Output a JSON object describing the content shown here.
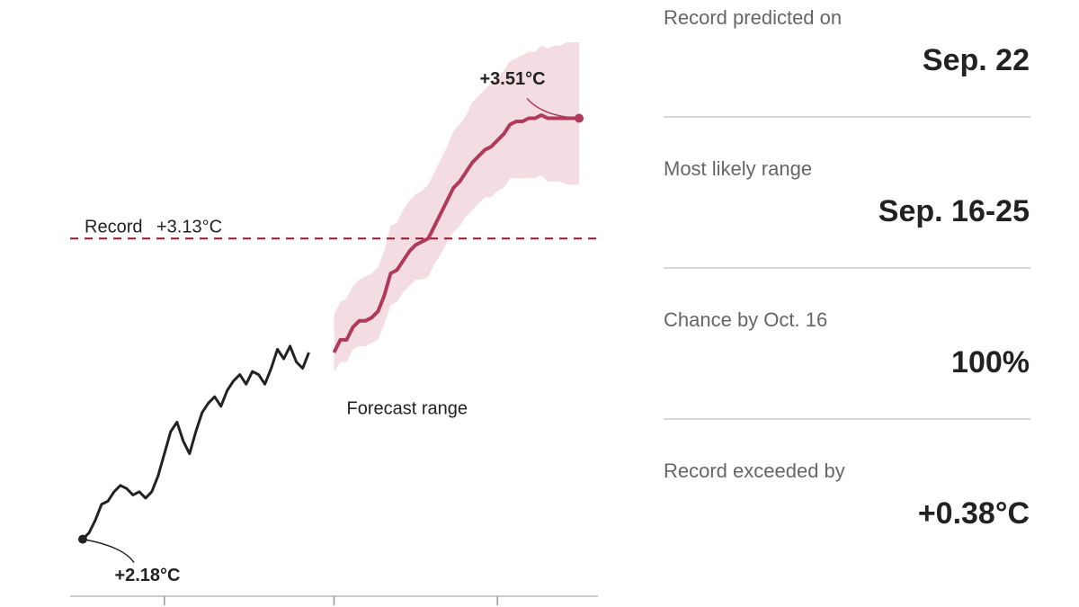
{
  "chart_data": {
    "type": "line",
    "x": [
      0,
      1,
      2,
      3,
      4,
      5,
      6,
      7,
      8,
      9,
      10,
      11,
      12,
      13,
      14,
      15,
      16,
      17,
      18,
      19,
      20,
      21,
      22,
      23,
      24,
      25,
      26,
      27,
      28,
      29,
      30,
      31,
      32,
      33,
      34,
      35,
      36,
      37,
      38,
      39,
      40,
      41,
      42,
      43,
      44,
      45,
      46,
      47,
      48,
      49,
      50,
      51,
      52,
      53,
      54,
      55,
      56,
      57,
      58,
      59,
      60,
      61,
      62,
      63,
      64,
      65,
      66,
      67,
      68,
      69,
      70,
      71,
      72,
      73,
      74,
      75,
      76,
      77,
      78,
      79
    ],
    "series": [
      {
        "color": "#222222",
        "values": [
          2.18,
          2.2,
          2.24,
          2.29,
          2.3,
          2.33,
          2.35,
          2.34,
          2.32,
          2.33,
          2.31,
          2.33,
          2.38,
          2.45,
          2.52,
          2.55,
          2.49,
          2.45,
          2.52,
          2.58,
          2.61,
          2.63,
          2.6,
          2.65,
          2.68,
          2.7,
          2.67,
          2.71,
          2.7,
          2.67,
          2.72,
          2.78,
          2.75,
          2.79,
          2.74,
          2.72,
          2.77,
          null,
          null,
          null,
          null,
          null,
          null,
          null,
          null,
          null,
          null,
          null,
          null,
          null,
          null,
          null,
          null,
          null,
          null,
          null,
          null,
          null,
          null,
          null,
          null,
          null,
          null,
          null,
          null,
          null,
          null,
          null,
          null,
          null,
          null,
          null,
          null,
          null,
          null,
          null,
          null,
          null,
          null,
          null
        ]
      },
      {
        "color": "#b03a5b",
        "values": [
          null,
          null,
          null,
          null,
          null,
          null,
          null,
          null,
          null,
          null,
          null,
          null,
          null,
          null,
          null,
          null,
          null,
          null,
          null,
          null,
          null,
          null,
          null,
          null,
          null,
          null,
          null,
          null,
          null,
          null,
          null,
          null,
          null,
          null,
          null,
          null,
          null,
          null,
          null,
          null,
          2.77,
          2.81,
          2.81,
          2.85,
          2.87,
          2.87,
          2.88,
          2.9,
          2.95,
          3.02,
          3.03,
          3.06,
          3.09,
          3.11,
          3.12,
          3.13,
          3.17,
          3.21,
          3.25,
          3.29,
          3.31,
          3.34,
          3.37,
          3.39,
          3.41,
          3.42,
          3.44,
          3.46,
          3.49,
          3.5,
          3.5,
          3.51,
          3.51,
          3.52,
          3.51,
          3.51,
          3.51,
          3.51,
          3.51,
          3.51
        ]
      }
    ],
    "band": {
      "name": "Forecast range",
      "color": "#f4dce3",
      "upper": [
        null,
        null,
        null,
        null,
        null,
        null,
        null,
        null,
        null,
        null,
        null,
        null,
        null,
        null,
        null,
        null,
        null,
        null,
        null,
        null,
        null,
        null,
        null,
        null,
        null,
        null,
        null,
        null,
        null,
        null,
        null,
        null,
        null,
        null,
        null,
        null,
        null,
        null,
        null,
        null,
        2.89,
        2.93,
        2.94,
        2.98,
        3.0,
        3.01,
        3.02,
        3.04,
        3.09,
        3.17,
        3.18,
        3.22,
        3.25,
        3.27,
        3.28,
        3.3,
        3.34,
        3.38,
        3.42,
        3.47,
        3.49,
        3.52,
        3.56,
        3.58,
        3.6,
        3.62,
        3.64,
        3.66,
        3.69,
        3.7,
        3.71,
        3.72,
        3.72,
        3.74,
        3.73,
        3.74,
        3.74,
        3.75,
        3.75,
        3.75
      ],
      "lower": [
        null,
        null,
        null,
        null,
        null,
        null,
        null,
        null,
        null,
        null,
        null,
        null,
        null,
        null,
        null,
        null,
        null,
        null,
        null,
        null,
        null,
        null,
        null,
        null,
        null,
        null,
        null,
        null,
        null,
        null,
        null,
        null,
        null,
        null,
        null,
        null,
        null,
        null,
        null,
        null,
        2.71,
        2.74,
        2.74,
        2.78,
        2.79,
        2.79,
        2.8,
        2.81,
        2.86,
        2.92,
        2.93,
        2.96,
        2.98,
        3.0,
        3.0,
        3.01,
        3.05,
        3.08,
        3.12,
        3.15,
        3.17,
        3.2,
        3.22,
        3.24,
        3.26,
        3.26,
        3.28,
        3.29,
        3.32,
        3.32,
        3.32,
        3.32,
        3.32,
        3.33,
        3.31,
        3.31,
        3.31,
        3.3,
        3.3,
        3.3
      ]
    },
    "reference_line": {
      "label": "Record",
      "value_label": "+3.13°C",
      "value": 3.13,
      "color": "#8b1a2e"
    },
    "annotations": [
      {
        "text": "+2.18°C",
        "x": 0,
        "y": 2.18,
        "color": "#222222"
      },
      {
        "text": "+3.51°C",
        "x": 79,
        "y": 3.51,
        "color": "#b03a5b"
      }
    ],
    "xlim": [
      -2,
      82
    ],
    "xticks": [
      13,
      40,
      66
    ],
    "ylim": [
      2.0,
      3.75
    ]
  },
  "stats": [
    {
      "label": "Record predicted on",
      "value": "Sep. 22"
    },
    {
      "label": "Most likely range",
      "value": "Sep. 16-25"
    },
    {
      "label": "Chance by Oct. 16",
      "value": "100%"
    },
    {
      "label": "Record exceeded by",
      "value": "+0.38°C"
    }
  ]
}
